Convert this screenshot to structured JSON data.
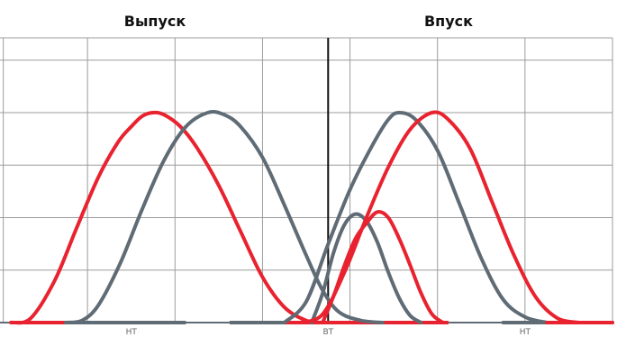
{
  "chart_data": {
    "type": "line",
    "titles": {
      "left": "Выпуск",
      "right": "Впуск"
    },
    "tick_labels": [
      {
        "x": -180,
        "text": "НТ"
      },
      {
        "x": 0,
        "text": "ВТ"
      },
      {
        "x": 180,
        "text": "НТ"
      }
    ],
    "x_range": [
      -300,
      260
    ],
    "y_range": [
      0,
      300
    ],
    "grid": true,
    "series": [
      {
        "color": "#e8232f",
        "baseline": [
          -290,
          -190
        ],
        "points": [
          [
            -290,
            0
          ],
          [
            -272,
            6
          ],
          [
            -250,
            60
          ],
          [
            -230,
            135
          ],
          [
            -210,
            208
          ],
          [
            -192,
            258
          ],
          [
            -180,
            280
          ],
          [
            -170,
            295
          ],
          [
            -160,
            300
          ],
          [
            -150,
            297
          ],
          [
            -135,
            280
          ],
          [
            -120,
            250
          ],
          [
            -100,
            196
          ],
          [
            -80,
            130
          ],
          [
            -60,
            65
          ],
          [
            -40,
            22
          ],
          [
            -20,
            3
          ],
          [
            -5,
            0
          ]
        ]
      },
      {
        "color": "#5f6b75",
        "baseline": [
          -240,
          -130
        ],
        "points": [
          [
            -240,
            0
          ],
          [
            -225,
            3
          ],
          [
            -210,
            25
          ],
          [
            -190,
            85
          ],
          [
            -170,
            162
          ],
          [
            -150,
            232
          ],
          [
            -130,
            280
          ],
          [
            -110,
            300
          ],
          [
            -95,
            297
          ],
          [
            -80,
            280
          ],
          [
            -60,
            236
          ],
          [
            -40,
            168
          ],
          [
            -20,
            96
          ],
          [
            -5,
            46
          ],
          [
            10,
            15
          ],
          [
            30,
            3
          ],
          [
            50,
            0
          ]
        ]
      },
      {
        "color": "#5f6b75",
        "baseline": [
          -90,
          0
        ],
        "points": [
          [
            -15,
            0
          ],
          [
            -5,
            42
          ],
          [
            5,
            100
          ],
          [
            15,
            140
          ],
          [
            25,
            155
          ],
          [
            35,
            145
          ],
          [
            45,
            115
          ],
          [
            55,
            72
          ],
          [
            65,
            35
          ],
          [
            75,
            10
          ],
          [
            85,
            0
          ]
        ]
      },
      {
        "color": "#e8232f",
        "baseline": [
          -40,
          30
        ],
        "points": [
          [
            -5,
            0
          ],
          [
            5,
            38
          ],
          [
            15,
            82
          ],
          [
            25,
            120
          ],
          [
            35,
            142
          ],
          [
            45,
            158
          ],
          [
            55,
            150
          ],
          [
            65,
            120
          ],
          [
            75,
            82
          ],
          [
            85,
            42
          ],
          [
            95,
            12
          ],
          [
            105,
            0
          ]
        ]
      },
      {
        "color": "#5f6b75",
        "baseline": [
          -20,
          90
        ],
        "points": [
          [
            -40,
            0
          ],
          [
            -20,
            30
          ],
          [
            0,
            112
          ],
          [
            20,
            190
          ],
          [
            40,
            252
          ],
          [
            55,
            290
          ],
          [
            65,
            300
          ],
          [
            80,
            290
          ],
          [
            100,
            246
          ],
          [
            120,
            170
          ],
          [
            140,
            92
          ],
          [
            160,
            33
          ],
          [
            180,
            8
          ],
          [
            200,
            0
          ]
        ]
      },
      {
        "color": "#e8232f",
        "baseline": [
          -35,
          110
        ],
        "points": [
          [
            -25,
            0
          ],
          [
            -5,
            12
          ],
          [
            15,
            72
          ],
          [
            35,
            150
          ],
          [
            55,
            222
          ],
          [
            75,
            276
          ],
          [
            95,
            300
          ],
          [
            110,
            290
          ],
          [
            130,
            248
          ],
          [
            150,
            172
          ],
          [
            170,
            96
          ],
          [
            190,
            36
          ],
          [
            210,
            6
          ],
          [
            230,
            0
          ]
        ]
      },
      {
        "color": "#5f6b75",
        "baseline": [
          160,
          260
        ],
        "points": [
          [
            160,
            0
          ],
          [
            260,
            0
          ]
        ]
      },
      {
        "color": "#e8232f",
        "baseline": [
          200,
          260
        ],
        "points": [
          [
            200,
            0
          ],
          [
            260,
            0
          ]
        ]
      }
    ]
  }
}
